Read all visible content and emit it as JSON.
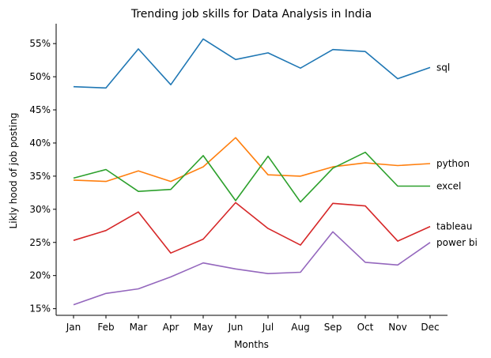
{
  "chart_data": {
    "type": "line",
    "title": "Trending job skills for Data Analysis in India",
    "xlabel": "Months",
    "ylabel": "Likly hood of job posting",
    "categories": [
      "Jan",
      "Feb",
      "Mar",
      "Apr",
      "May",
      "Jun",
      "Jul",
      "Aug",
      "Sep",
      "Oct",
      "Nov",
      "Dec"
    ],
    "ylim": [
      14,
      58
    ],
    "yticks": [
      15,
      20,
      25,
      30,
      35,
      40,
      45,
      50,
      55
    ],
    "ytick_labels": [
      "15%",
      "20%",
      "25%",
      "30%",
      "35%",
      "40%",
      "45%",
      "50%",
      "55%"
    ],
    "grid": false,
    "legend": "end-of-line labels",
    "series": [
      {
        "name": "sql",
        "color": "#1f77b4",
        "values": [
          48.5,
          48.3,
          54.2,
          48.8,
          55.7,
          52.6,
          53.6,
          51.3,
          54.1,
          53.8,
          49.7,
          51.4
        ]
      },
      {
        "name": "python",
        "color": "#ff7f0e",
        "values": [
          34.4,
          34.2,
          35.8,
          34.2,
          36.4,
          40.8,
          35.2,
          35.0,
          36.4,
          37.0,
          36.6,
          36.9
        ]
      },
      {
        "name": "excel",
        "color": "#2ca02c",
        "values": [
          34.7,
          36.0,
          32.7,
          33.0,
          38.1,
          31.3,
          38.0,
          31.1,
          36.2,
          38.6,
          33.5,
          33.5
        ]
      },
      {
        "name": "tableau",
        "color": "#d62728",
        "values": [
          25.3,
          26.8,
          29.6,
          23.4,
          25.5,
          31.0,
          27.1,
          24.6,
          30.9,
          30.5,
          25.2,
          27.4
        ]
      },
      {
        "name": "power bi",
        "color": "#9467bd",
        "values": [
          15.6,
          17.3,
          18.0,
          19.8,
          21.9,
          21.0,
          20.3,
          20.5,
          26.6,
          22.0,
          21.6,
          25.0
        ]
      }
    ]
  }
}
